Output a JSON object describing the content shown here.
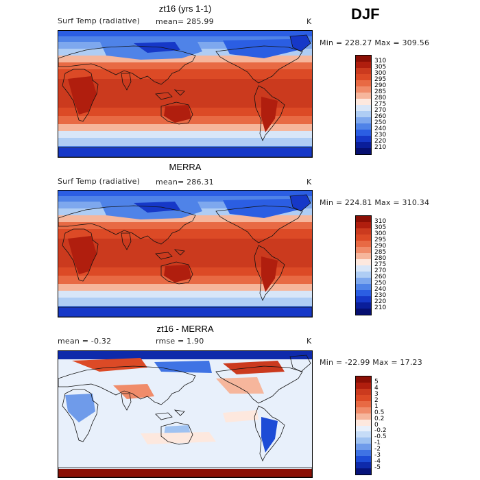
{
  "season": "DJF",
  "panels": [
    {
      "title": "zt16 (yrs 1-1)",
      "field": "Surf Temp (radiative)",
      "stat": "mean=  285.99",
      "unit": "K",
      "range": "Min = 228.27 Max = 309.56",
      "map_kind": "abs",
      "colorbar": {
        "labels": [
          "310",
          "305",
          "300",
          "295",
          "290",
          "285",
          "280",
          "275",
          "270",
          "260",
          "250",
          "240",
          "230",
          "220",
          "210"
        ],
        "colors": [
          "#8b0f05",
          "#b01e0e",
          "#cb3a1e",
          "#dc4a26",
          "#e86a44",
          "#f08c6a",
          "#f6b69c",
          "#fde8de",
          "#d8e6f8",
          "#afcdf4",
          "#7ea8ee",
          "#4f83e8",
          "#2b5ee3",
          "#1638c8",
          "#0a1e9a",
          "#060f70"
        ]
      }
    },
    {
      "title": "MERRA",
      "field": "Surf Temp (radiative)",
      "stat": "mean=  286.31",
      "unit": "K",
      "range": "Min = 224.81 Max = 310.34",
      "map_kind": "abs",
      "colorbar": {
        "labels": [
          "310",
          "305",
          "300",
          "295",
          "290",
          "285",
          "280",
          "275",
          "270",
          "260",
          "250",
          "240",
          "230",
          "220",
          "210"
        ],
        "colors": [
          "#8b0f05",
          "#b01e0e",
          "#cb3a1e",
          "#dc4a26",
          "#e86a44",
          "#f08c6a",
          "#f6b69c",
          "#fde8de",
          "#d8e6f8",
          "#afcdf4",
          "#7ea8ee",
          "#4f83e8",
          "#2b5ee3",
          "#1638c8",
          "#0a1e9a",
          "#060f70"
        ]
      }
    },
    {
      "title": "zt16 - MERRA",
      "field": "mean =   -0.32",
      "stat": "rmse =    1.90",
      "unit": "K",
      "range": "Min = -22.99 Max =   17.23",
      "map_kind": "diff",
      "colorbar": {
        "labels": [
          "5",
          "4",
          "3",
          "2",
          "1",
          "0.5",
          "0.2",
          "0",
          "-0.2",
          "-0.5",
          "-1",
          "-2",
          "-3",
          "-4",
          "-5"
        ],
        "colors": [
          "#8b0f05",
          "#b01e0e",
          "#cb3a1e",
          "#dc4a26",
          "#e86a44",
          "#f08c6a",
          "#f6b69c",
          "#fde8de",
          "#e8f0fb",
          "#c6dcf7",
          "#9fc2f1",
          "#6f9bea",
          "#3f73e4",
          "#1d4cd6",
          "#0e2aab",
          "#06137a"
        ]
      }
    }
  ]
}
